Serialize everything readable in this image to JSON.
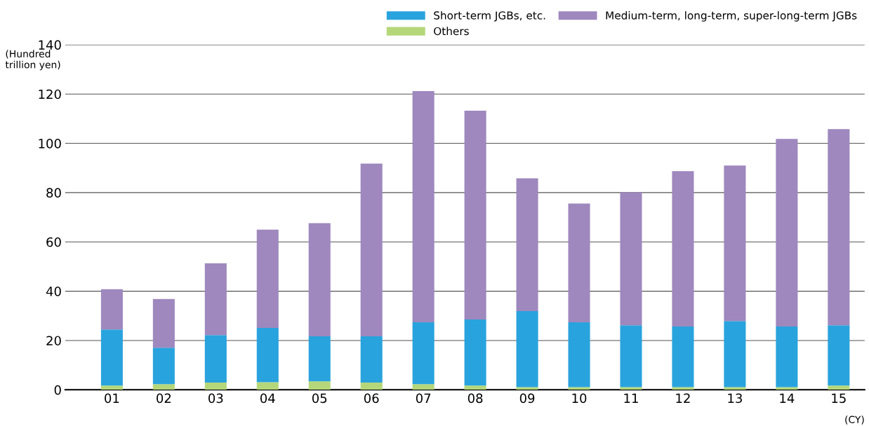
{
  "chart_data": {
    "type": "bar",
    "stacked": true,
    "categories": [
      "01",
      "02",
      "03",
      "04",
      "05",
      "06",
      "07",
      "08",
      "09",
      "10",
      "11",
      "12",
      "13",
      "14",
      "15"
    ],
    "series": [
      {
        "name": "Others",
        "color": "#b5d77a",
        "values": [
          1.7,
          2.3,
          2.9,
          3.1,
          3.4,
          2.9,
          2.3,
          1.7,
          1.1,
          1.1,
          1.1,
          1.1,
          1.1,
          1.1,
          1.7
        ]
      },
      {
        "name": "Short-term JGBs, etc.",
        "color": "#29a3dd",
        "values": [
          22.8,
          14.8,
          19.3,
          22.0,
          18.3,
          18.8,
          25.1,
          26.8,
          30.8,
          26.3,
          25.1,
          24.6,
          26.8,
          24.6,
          24.5
        ]
      },
      {
        "name": "Medium-term, long-term, super-long-term JGBs",
        "color": "#9e88be",
        "values": [
          16.3,
          19.7,
          29.1,
          39.9,
          45.9,
          70.1,
          93.8,
          84.7,
          53.9,
          48.2,
          53.9,
          63.0,
          63.1,
          76.1,
          79.6
        ]
      }
    ],
    "ylabel": "(Hundred\ntrillion yen)",
    "xlabel": "(CY)",
    "ylim": [
      0,
      140
    ],
    "yticks": [
      0,
      20,
      40,
      60,
      80,
      100,
      120,
      140
    ],
    "grid": "y",
    "legend": "top right"
  }
}
